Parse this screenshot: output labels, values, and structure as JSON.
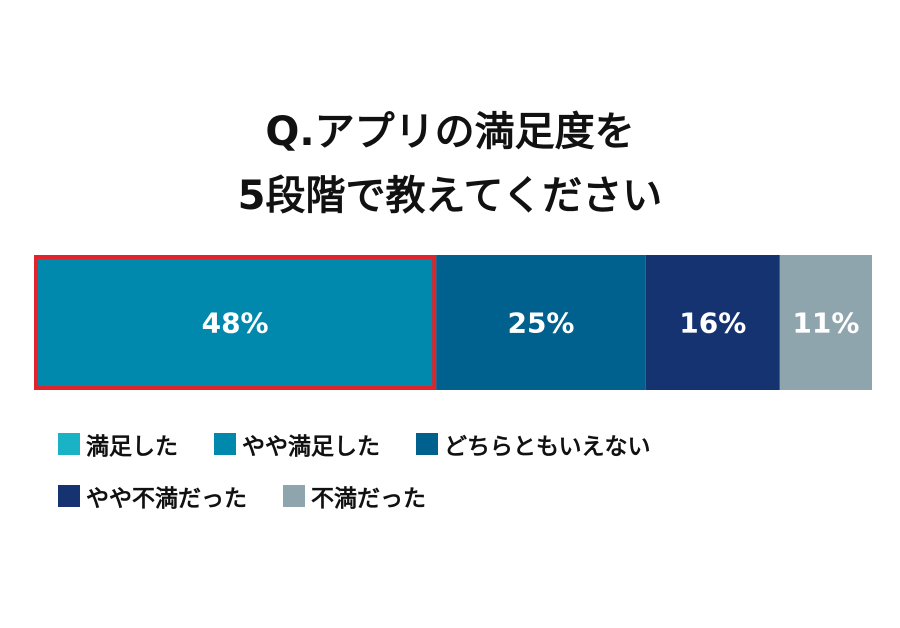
{
  "chart_data": {
    "type": "bar",
    "orientation": "horizontal",
    "stacked": true,
    "title_lines": [
      "Q.アプリの満足度を",
      "5段階で教えてください"
    ],
    "series": [
      {
        "name": "満足した",
        "value": 0,
        "label": "",
        "color": "#1ab3c6"
      },
      {
        "name": "やや満足した",
        "value": 48,
        "label": "48%",
        "color": "#0089ad",
        "highlighted": true
      },
      {
        "name": "どちらともいえない",
        "value": 25,
        "label": "25%",
        "color": "#00608e"
      },
      {
        "name": "やや不満だった",
        "value": 16,
        "label": "16%",
        "color": "#143370"
      },
      {
        "name": "不満だった",
        "value": 11,
        "label": "11%",
        "color": "#8ea5ae"
      }
    ],
    "total": 100,
    "highlight_color": "#e0242b",
    "legend_position": "bottom-left"
  }
}
